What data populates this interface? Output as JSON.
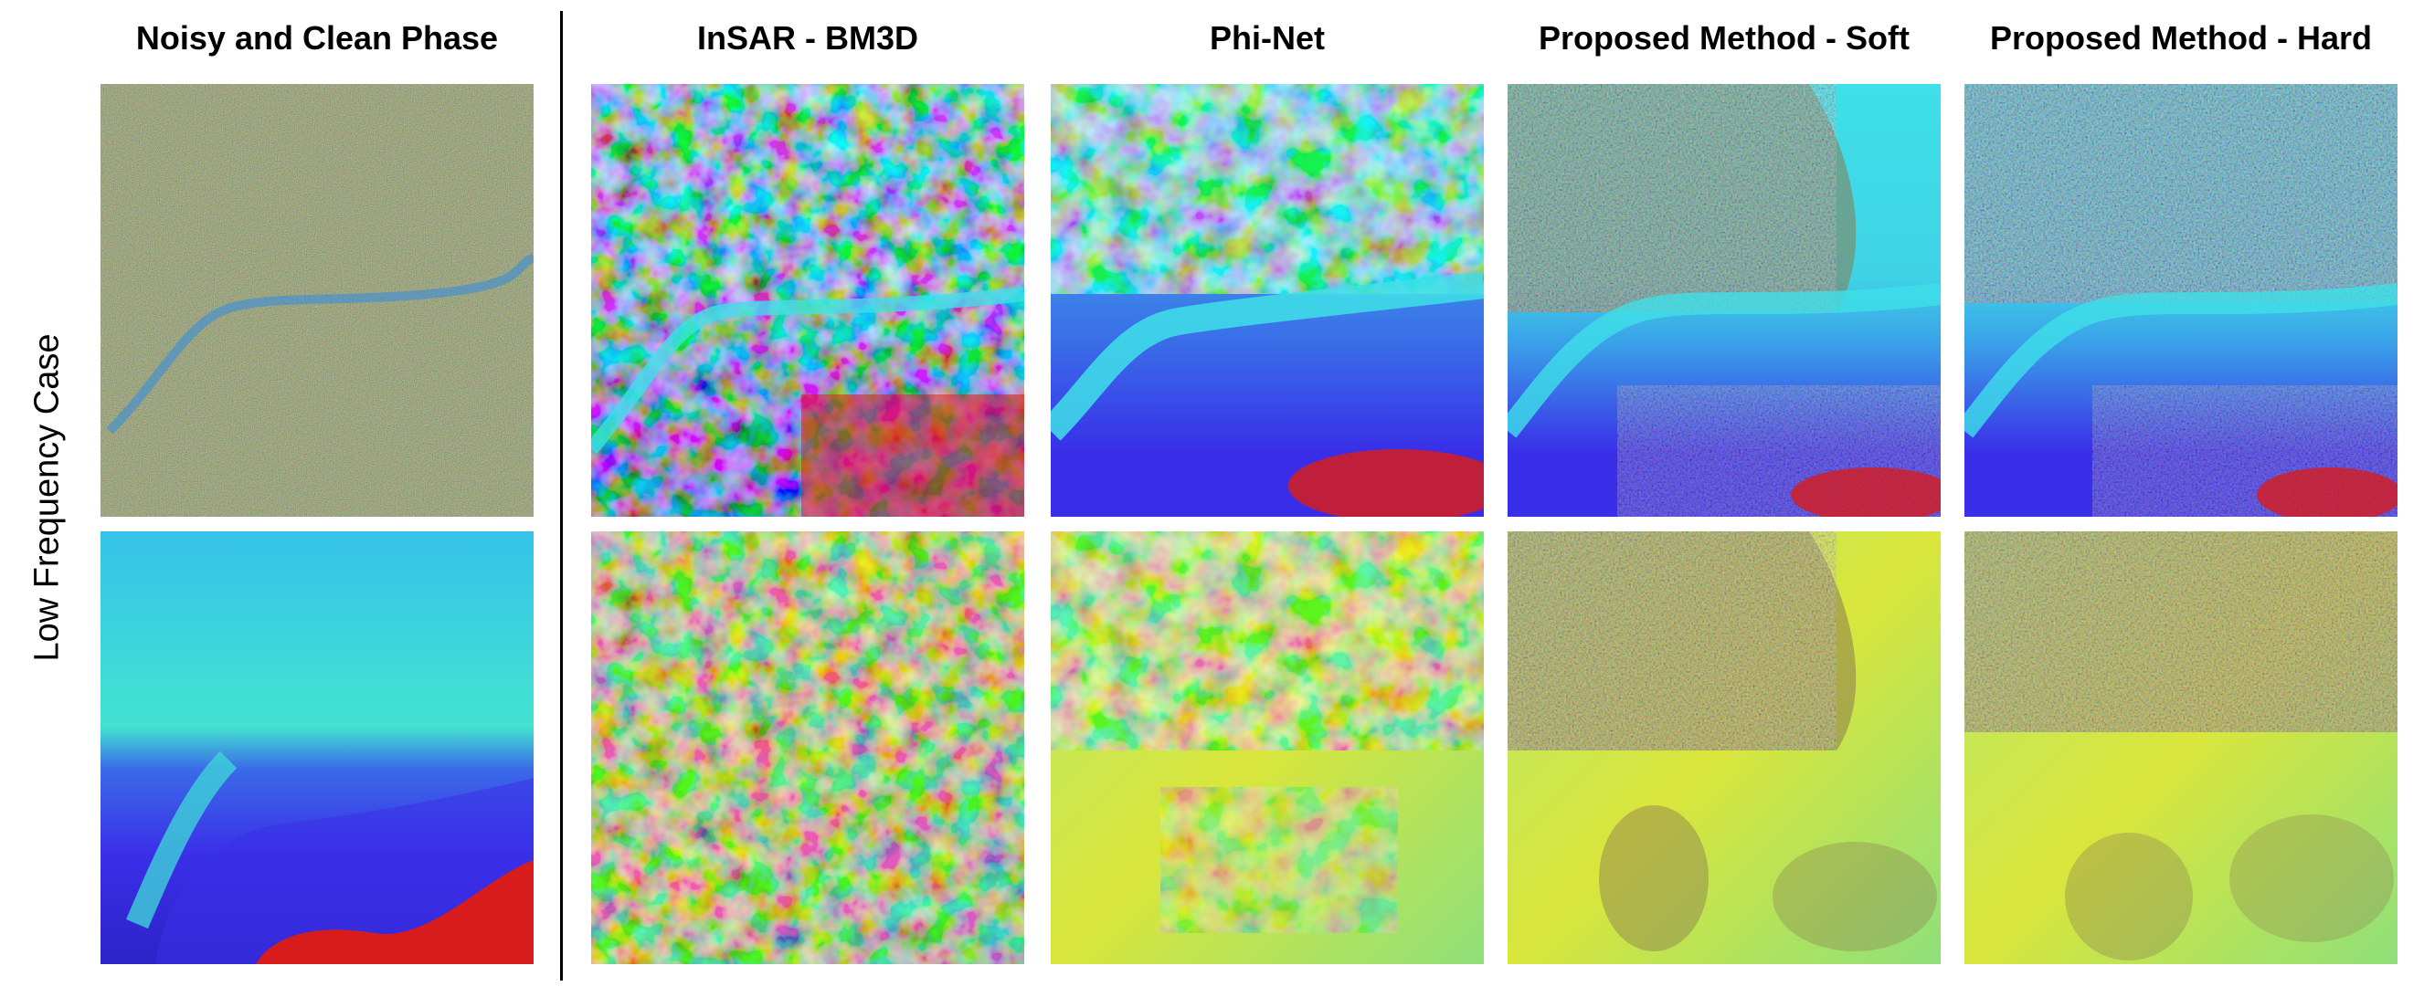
{
  "row_label": "Low Frequency Case",
  "columns": [
    {
      "title": "Noisy and Clean Phase"
    },
    {
      "title": "InSAR - BM3D"
    },
    {
      "title": "Phi-Net"
    },
    {
      "title": "Proposed Method - Soft"
    },
    {
      "title": "Proposed Method - Hard"
    }
  ],
  "rows": [
    {
      "name": "top-row"
    },
    {
      "name": "bottom-row"
    }
  ],
  "colors": {
    "noise": "#7a8c3c",
    "cyan": "#3fe0e8",
    "blue": "#3a2fe8",
    "red": "#d81c1c",
    "yellow": "#d9e63c",
    "green": "#8fe07a"
  }
}
